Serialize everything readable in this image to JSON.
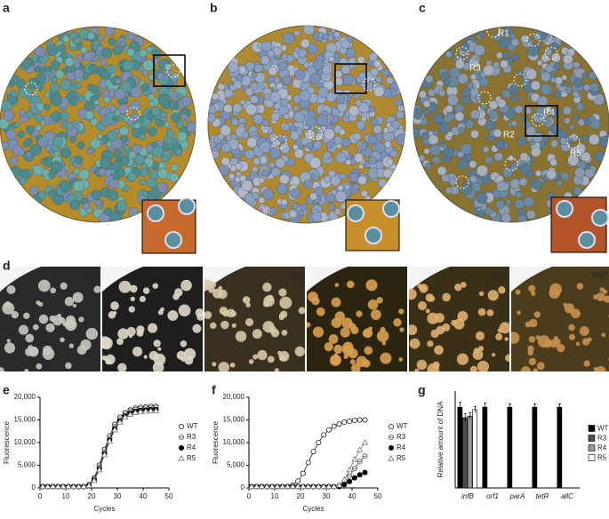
{
  "figure": {
    "panels": [
      "a",
      "b",
      "c",
      "d",
      "e",
      "f",
      "g"
    ],
    "dish_labels": [
      "R1",
      "R2",
      "R3",
      "R4",
      "R5"
    ],
    "strip_labels": [
      "WT",
      "R1",
      "R2",
      "R3*",
      "R4*",
      "R5*"
    ]
  },
  "chart_data": [
    {
      "type": "line",
      "xlabel": "Cycles",
      "ylabel": "Fluorescence",
      "x": [
        1,
        3,
        5,
        7,
        9,
        11,
        13,
        15,
        17,
        19,
        21,
        23,
        25,
        27,
        29,
        31,
        33,
        35,
        37,
        39,
        41,
        43,
        45
      ],
      "xlim": [
        0,
        50
      ],
      "xticks": [
        0,
        10,
        20,
        30,
        40,
        50
      ],
      "ylim": [
        0,
        20000
      ],
      "yticks": [
        0,
        {
          "value": 5000,
          "label": "5,000"
        },
        {
          "value": 10000,
          "label": "10,000"
        },
        {
          "value": 15000,
          "label": "15,000"
        },
        {
          "value": 20000,
          "label": "20,000"
        }
      ],
      "series": [
        {
          "name": "WT",
          "color": "#222222",
          "marker": "circle-open",
          "values": [
            300,
            300,
            300,
            300,
            300,
            300,
            300,
            300,
            300,
            700,
            2200,
            5000,
            8500,
            11500,
            14000,
            15600,
            16600,
            17200,
            17600,
            17800,
            17900,
            18000,
            18000
          ]
        },
        {
          "name": "R3",
          "color": "#555555",
          "marker": "circle-half",
          "values": [
            300,
            300,
            300,
            300,
            300,
            300,
            300,
            300,
            300,
            600,
            1900,
            4500,
            8000,
            11000,
            13500,
            15200,
            16300,
            16900,
            17300,
            17500,
            17600,
            17700,
            17700
          ]
        },
        {
          "name": "R4",
          "color": "#000000",
          "marker": "circle-filled",
          "values": [
            300,
            300,
            300,
            300,
            300,
            300,
            300,
            300,
            300,
            500,
            1700,
            4200,
            7600,
            10600,
            13100,
            14800,
            15900,
            16500,
            16900,
            17100,
            17200,
            17300,
            17300
          ]
        },
        {
          "name": "R5",
          "color": "#777777",
          "marker": "triangle-open",
          "values": [
            300,
            300,
            300,
            300,
            300,
            300,
            300,
            300,
            300,
            500,
            1600,
            4000,
            7300,
            10300,
            12800,
            14500,
            15600,
            16200,
            16600,
            16800,
            16900,
            17000,
            17000
          ]
        }
      ]
    },
    {
      "type": "line",
      "xlabel": "Cycles",
      "ylabel": "Fluorescence",
      "x": [
        1,
        3,
        5,
        7,
        9,
        11,
        13,
        15,
        17,
        19,
        21,
        23,
        25,
        27,
        29,
        31,
        33,
        35,
        37,
        39,
        41,
        43,
        45
      ],
      "xlim": [
        0,
        50
      ],
      "xticks": [
        0,
        10,
        20,
        30,
        40,
        50
      ],
      "ylim": [
        0,
        20000
      ],
      "yticks": [
        0,
        {
          "value": 5000,
          "label": "5,000"
        },
        {
          "value": 10000,
          "label": "10,000"
        },
        {
          "value": 15000,
          "label": "15,000"
        },
        {
          "value": 20000,
          "label": "20,000"
        }
      ],
      "series": [
        {
          "name": "WT",
          "color": "#222222",
          "marker": "circle-open",
          "values": [
            300,
            300,
            300,
            300,
            300,
            300,
            300,
            300,
            600,
            1500,
            3200,
            5600,
            8000,
            10000,
            11700,
            12800,
            13600,
            14100,
            14500,
            14700,
            14900,
            15000,
            15000
          ]
        },
        {
          "name": "R3",
          "color": "#555555",
          "marker": "circle-half",
          "values": [
            300,
            300,
            300,
            300,
            300,
            300,
            300,
            300,
            300,
            300,
            300,
            300,
            300,
            300,
            300,
            300,
            300,
            500,
            1200,
            2600,
            4300,
            5800,
            7000
          ]
        },
        {
          "name": "R4",
          "color": "#000000",
          "marker": "circle-filled",
          "values": [
            300,
            300,
            300,
            300,
            300,
            300,
            300,
            300,
            300,
            300,
            300,
            300,
            300,
            300,
            300,
            300,
            300,
            300,
            700,
            1400,
            2200,
            2900,
            3400
          ]
        },
        {
          "name": "R5",
          "color": "#777777",
          "marker": "triangle-open",
          "values": [
            300,
            300,
            300,
            300,
            300,
            300,
            300,
            300,
            300,
            300,
            300,
            300,
            300,
            300,
            300,
            300,
            300,
            600,
            1800,
            4000,
            6300,
            8400,
            10000
          ]
        }
      ]
    },
    {
      "type": "bar",
      "ylabel": "Relative amount of DNA",
      "categories": [
        "infB",
        "orf1",
        "parA",
        "tetR",
        "allC"
      ],
      "ylim": [
        0,
        1.2
      ],
      "series": [
        {
          "name": "WT",
          "color": "#000000",
          "values": [
            1,
            1,
            1,
            1,
            1
          ],
          "errors": [
            0.06,
            0.05,
            0.04,
            0.04,
            0.04
          ]
        },
        {
          "name": "R3",
          "color": "#4d4d4d",
          "values": [
            0.87,
            0,
            0,
            0,
            0
          ],
          "errors": [
            0.05,
            0,
            0,
            0,
            0
          ]
        },
        {
          "name": "R4",
          "color": "#9a9a9a",
          "values": [
            0.89,
            0,
            0,
            0,
            0
          ],
          "errors": [
            0.04,
            0,
            0,
            0,
            0
          ]
        },
        {
          "name": "R5",
          "color": "#ffffff",
          "values": [
            0.97,
            0,
            0,
            0,
            0
          ],
          "errors": [
            0.04,
            0,
            0,
            0,
            0
          ]
        }
      ]
    }
  ]
}
